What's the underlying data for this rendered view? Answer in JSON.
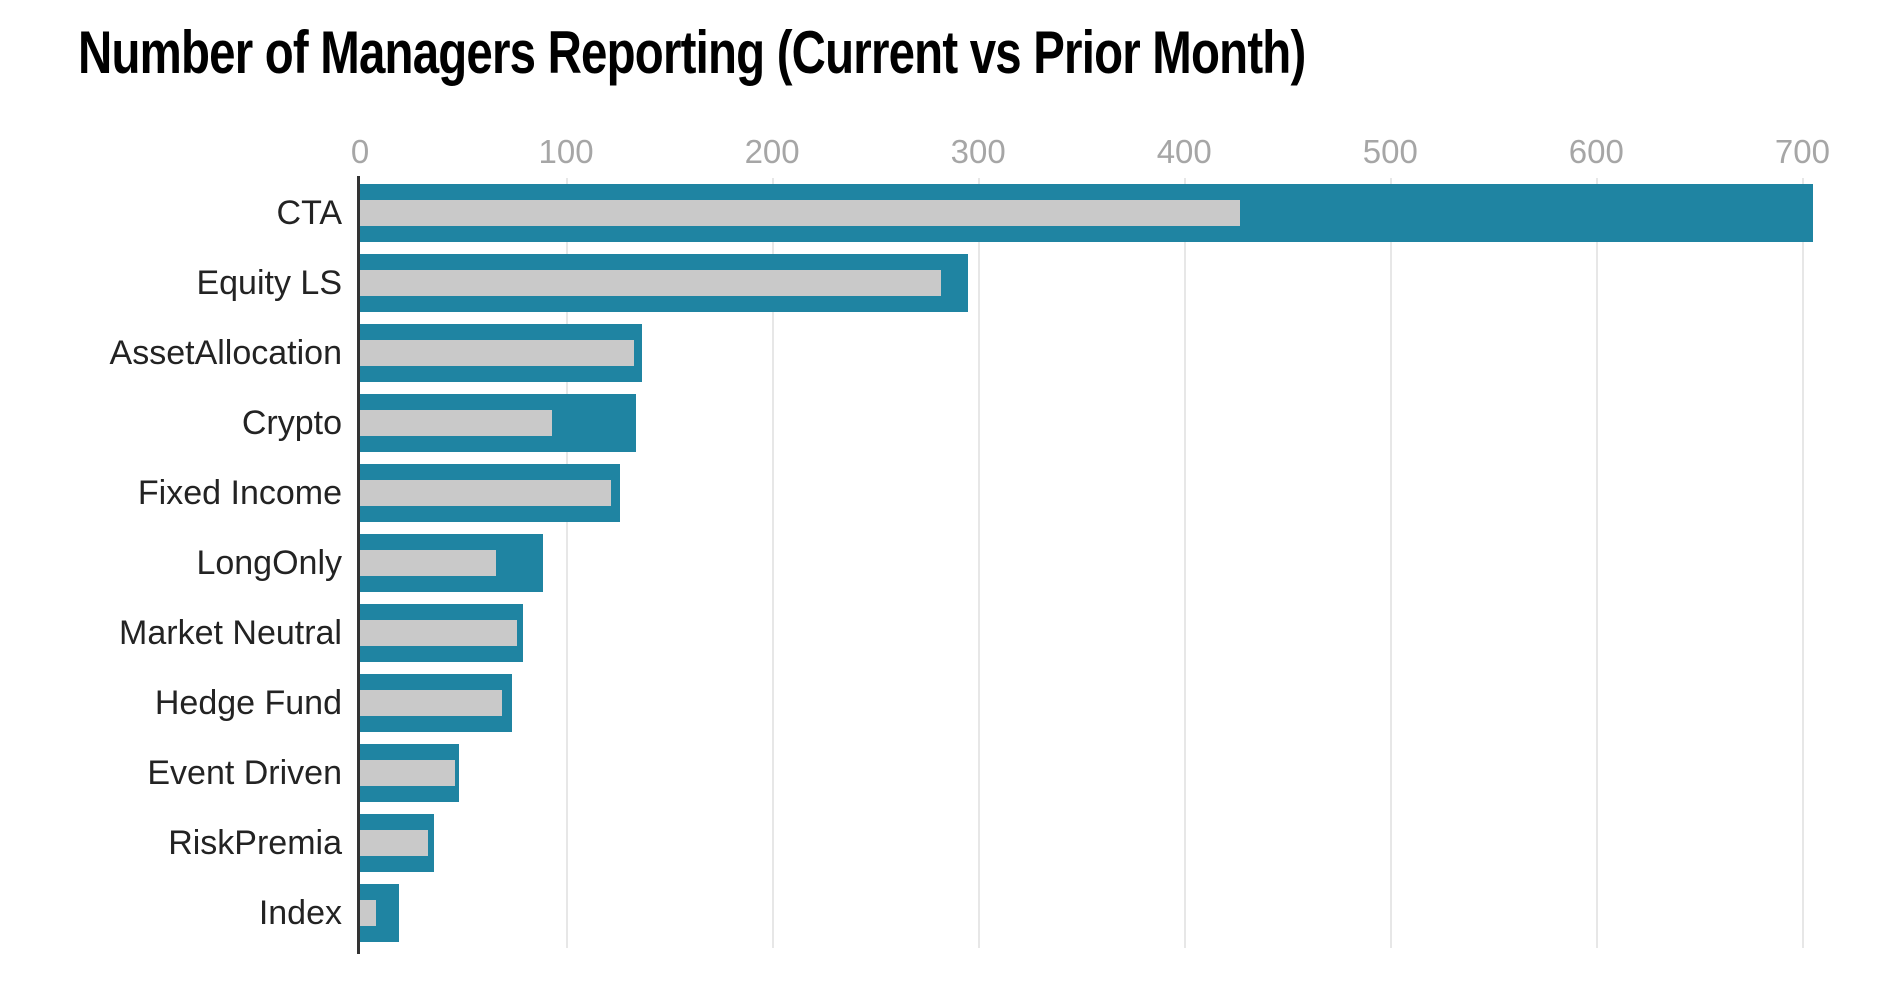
{
  "chart_data": {
    "type": "bar",
    "orientation": "horizontal",
    "title": "Number of Managers Reporting (Current vs Prior Month)",
    "categories": [
      "CTA",
      "Equity LS",
      "AssetAllocation",
      "Crypto",
      "Fixed Income",
      "LongOnly",
      "Market Neutral",
      "Hedge Fund",
      "Event Driven",
      "RiskPremia",
      "Index"
    ],
    "series": [
      {
        "name": "Current Month",
        "color": "#1f84a2",
        "values": [
          705,
          295,
          137,
          134,
          126,
          89,
          79,
          74,
          48,
          36,
          19
        ]
      },
      {
        "name": "Prior Month",
        "color": "#c9c9c9",
        "values": [
          427,
          282,
          133,
          93,
          122,
          66,
          76,
          69,
          46,
          33,
          8
        ]
      }
    ],
    "xlabel": "",
    "ylabel": "",
    "x_axis": {
      "position": "top",
      "ticks": [
        0,
        100,
        200,
        300,
        400,
        500,
        600,
        700
      ],
      "max": 710
    },
    "grid": true,
    "legend_position": "none"
  },
  "colors": {
    "current_bar": "#1f84a2",
    "prior_bar": "#c9c9c9",
    "gridline": "#e7e7e7",
    "axis_line": "#333333",
    "tick_label": "#a6a6a6",
    "category_label": "#232323",
    "title": "#000000",
    "background": "#ffffff"
  }
}
